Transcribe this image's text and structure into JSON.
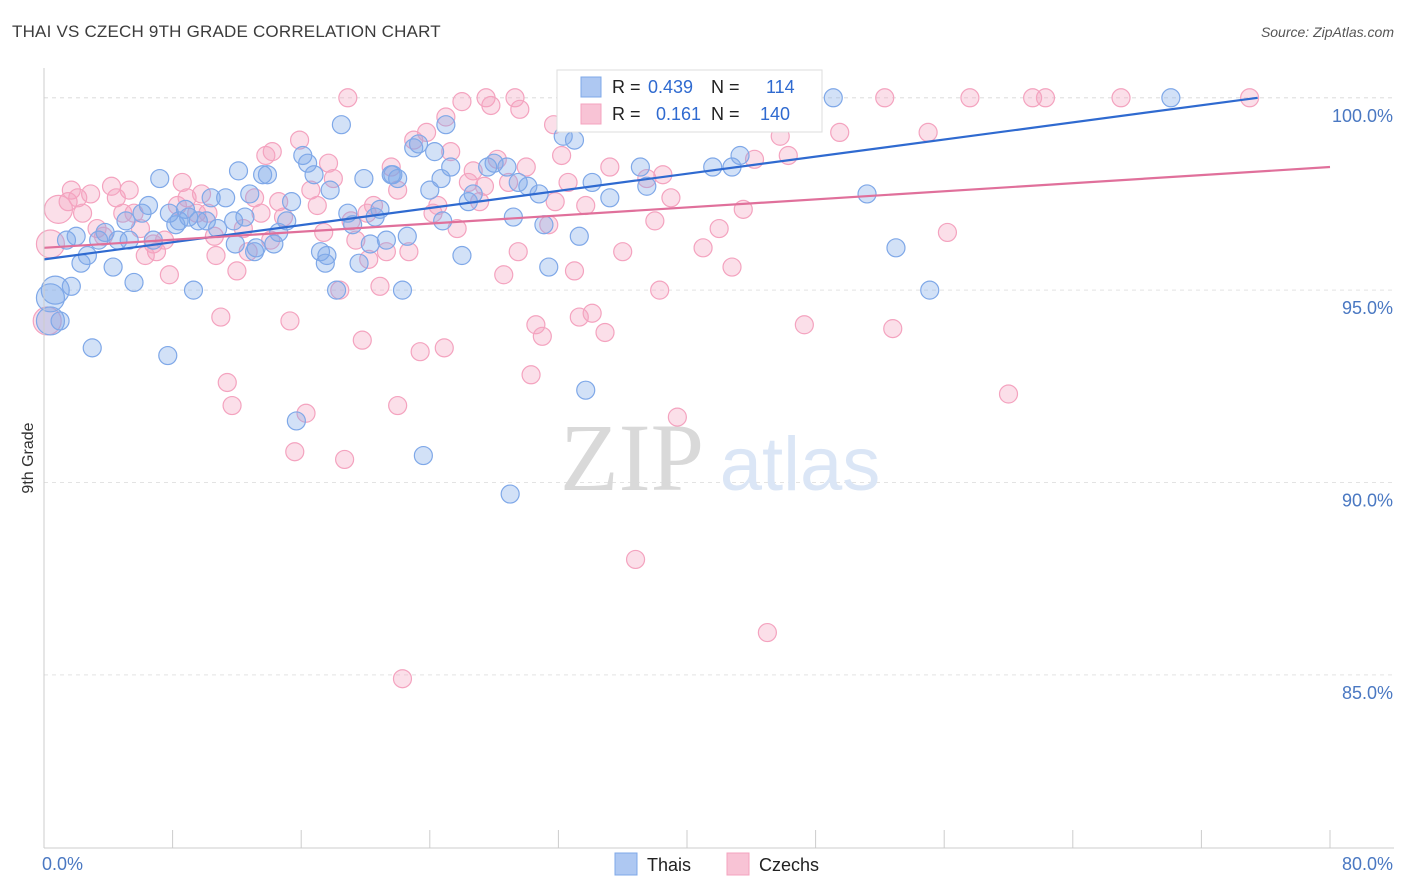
{
  "header": {
    "title": "THAI VS CZECH 9TH GRADE CORRELATION CHART",
    "source": "Source: ZipAtlas.com"
  },
  "watermark": {
    "zip": "ZIP",
    "atlas": "atlas"
  },
  "stats": [
    {
      "r_label": "R =",
      "r_value": "0.439",
      "n_label": "N =",
      "n_value": "114",
      "color": "#7fa8e8"
    },
    {
      "r_label": "R =",
      "r_value": "0.161",
      "n_label": "N =",
      "n_value": "140",
      "color": "#f4a3bf"
    }
  ],
  "chart_data": {
    "type": "scatter",
    "title": "THAI VS CZECH 9TH GRADE CORRELATION CHART",
    "xlabel": "",
    "ylabel": "9th Grade",
    "xlim": [
      0,
      80
    ],
    "ylim": [
      80.5,
      100.8
    ],
    "x_tick_labels": [
      "0.0%",
      "80.0%"
    ],
    "y_ticks": [
      85,
      90,
      95,
      100
    ],
    "y_tick_labels": [
      "85.0%",
      "90.0%",
      "95.0%",
      "100.0%"
    ],
    "grid": true,
    "legend_position": "bottom",
    "series": [
      {
        "name": "Thais",
        "color": "#7fa8e8",
        "line_color": "#2f6ad0",
        "trend": [
          [
            0,
            95.8
          ],
          [
            75.5,
            100
          ]
        ],
        "points": [
          [
            0.4,
            94.2
          ],
          [
            0.4,
            94.8
          ],
          [
            1.0,
            94.2
          ],
          [
            0.7,
            95.0
          ],
          [
            1.7,
            95.1
          ],
          [
            1.4,
            96.3
          ],
          [
            2.3,
            95.7
          ],
          [
            2.0,
            96.4
          ],
          [
            2.7,
            95.9
          ],
          [
            3.4,
            96.3
          ],
          [
            3.8,
            96.5
          ],
          [
            4.3,
            95.6
          ],
          [
            4.6,
            96.3
          ],
          [
            5.1,
            96.8
          ],
          [
            5.3,
            96.3
          ],
          [
            6.1,
            97.0
          ],
          [
            6.5,
            97.2
          ],
          [
            6.8,
            96.3
          ],
          [
            7.2,
            97.9
          ],
          [
            7.8,
            97.0
          ],
          [
            8.2,
            96.7
          ],
          [
            8.4,
            96.8
          ],
          [
            8.8,
            97.1
          ],
          [
            9.3,
            95.0
          ],
          [
            9.6,
            96.8
          ],
          [
            10.1,
            96.8
          ],
          [
            10.4,
            97.4
          ],
          [
            10.8,
            96.6
          ],
          [
            11.3,
            97.4
          ],
          [
            11.8,
            96.8
          ],
          [
            12.1,
            98.1
          ],
          [
            12.5,
            96.9
          ],
          [
            12.8,
            97.5
          ],
          [
            13.2,
            96.1
          ],
          [
            13.6,
            98.0
          ],
          [
            13.9,
            98.0
          ],
          [
            14.3,
            96.2
          ],
          [
            14.6,
            96.5
          ],
          [
            15.1,
            96.8
          ],
          [
            15.4,
            97.3
          ],
          [
            15.7,
            91.6
          ],
          [
            16.1,
            98.5
          ],
          [
            16.4,
            98.3
          ],
          [
            16.8,
            98.0
          ],
          [
            17.2,
            96.0
          ],
          [
            17.5,
            95.7
          ],
          [
            17.8,
            97.6
          ],
          [
            18.2,
            95.0
          ],
          [
            18.5,
            99.3
          ],
          [
            18.9,
            97.0
          ],
          [
            19.2,
            96.7
          ],
          [
            19.6,
            95.7
          ],
          [
            19.9,
            97.9
          ],
          [
            20.3,
            96.2
          ],
          [
            20.6,
            96.9
          ],
          [
            20.9,
            97.1
          ],
          [
            21.3,
            96.3
          ],
          [
            21.6,
            98.0
          ],
          [
            22.0,
            97.9
          ],
          [
            22.3,
            95.0
          ],
          [
            22.6,
            96.4
          ],
          [
            23.0,
            98.7
          ],
          [
            23.3,
            98.8
          ],
          [
            23.6,
            90.7
          ],
          [
            24.0,
            97.6
          ],
          [
            24.3,
            98.6
          ],
          [
            24.7,
            97.9
          ],
          [
            25.0,
            99.3
          ],
          [
            25.3,
            98.2
          ],
          [
            26.0,
            95.9
          ],
          [
            26.4,
            97.3
          ],
          [
            26.7,
            97.5
          ],
          [
            27.6,
            98.2
          ],
          [
            28.0,
            98.3
          ],
          [
            28.8,
            98.2
          ],
          [
            29.2,
            96.9
          ],
          [
            29.5,
            97.8
          ],
          [
            30.1,
            97.7
          ],
          [
            31.1,
            96.7
          ],
          [
            31.4,
            95.6
          ],
          [
            32.3,
            99.0
          ],
          [
            32.6,
            99.9
          ],
          [
            33.0,
            98.9
          ],
          [
            33.3,
            96.4
          ],
          [
            33.7,
            92.4
          ],
          [
            34.1,
            97.8
          ],
          [
            34.8,
            100.0
          ],
          [
            35.2,
            97.4
          ],
          [
            36.1,
            99.4
          ],
          [
            37.1,
            98.2
          ],
          [
            37.5,
            97.7
          ],
          [
            38.8,
            100.0
          ],
          [
            39.3,
            100.0
          ],
          [
            40.2,
            100.0
          ],
          [
            41.6,
            98.2
          ],
          [
            42.8,
            98.2
          ],
          [
            43.3,
            98.5
          ],
          [
            49.1,
            100.0
          ],
          [
            51.2,
            97.5
          ],
          [
            53.0,
            96.1
          ],
          [
            55.1,
            95.0
          ],
          [
            70.1,
            100.0
          ],
          [
            17.6,
            95.9
          ],
          [
            5.6,
            95.2
          ],
          [
            9.0,
            96.9
          ],
          [
            13.1,
            96.0
          ],
          [
            21.7,
            98.0
          ],
          [
            24.8,
            96.8
          ],
          [
            30.8,
            97.5
          ],
          [
            36.8,
            99.5
          ],
          [
            29.0,
            89.7
          ],
          [
            3.0,
            93.5
          ],
          [
            7.7,
            93.3
          ],
          [
            11.9,
            96.2
          ]
        ]
      },
      {
        "name": "Czechs",
        "color": "#f4a3bf",
        "line_color": "#e0709b",
        "trend": [
          [
            0,
            96.1
          ],
          [
            80,
            98.2
          ]
        ],
        "points": [
          [
            0.2,
            94.2
          ],
          [
            0.4,
            96.2
          ],
          [
            0.9,
            97.1
          ],
          [
            1.5,
            97.3
          ],
          [
            1.7,
            97.6
          ],
          [
            2.1,
            97.4
          ],
          [
            2.4,
            97.0
          ],
          [
            2.9,
            97.5
          ],
          [
            3.3,
            96.6
          ],
          [
            3.7,
            96.4
          ],
          [
            4.2,
            97.7
          ],
          [
            4.5,
            97.4
          ],
          [
            4.9,
            97.0
          ],
          [
            5.3,
            97.6
          ],
          [
            5.6,
            97.0
          ],
          [
            6.0,
            96.6
          ],
          [
            6.3,
            95.9
          ],
          [
            6.8,
            96.2
          ],
          [
            7.0,
            96.0
          ],
          [
            7.5,
            96.3
          ],
          [
            7.8,
            95.4
          ],
          [
            8.3,
            97.2
          ],
          [
            8.6,
            97.8
          ],
          [
            8.9,
            97.4
          ],
          [
            9.5,
            97.0
          ],
          [
            9.8,
            97.5
          ],
          [
            10.2,
            97.0
          ],
          [
            10.6,
            96.4
          ],
          [
            11.0,
            94.3
          ],
          [
            11.4,
            92.6
          ],
          [
            11.7,
            92.0
          ],
          [
            12.0,
            95.5
          ],
          [
            12.4,
            96.6
          ],
          [
            12.7,
            96.0
          ],
          [
            13.1,
            97.4
          ],
          [
            13.5,
            97.0
          ],
          [
            13.8,
            98.5
          ],
          [
            14.2,
            98.6
          ],
          [
            14.6,
            97.3
          ],
          [
            14.9,
            96.9
          ],
          [
            15.3,
            94.2
          ],
          [
            15.6,
            90.8
          ],
          [
            15.9,
            98.9
          ],
          [
            16.3,
            91.8
          ],
          [
            16.6,
            97.6
          ],
          [
            17.0,
            97.2
          ],
          [
            17.4,
            96.5
          ],
          [
            17.7,
            98.3
          ],
          [
            18.0,
            97.9
          ],
          [
            18.4,
            95.0
          ],
          [
            18.7,
            90.6
          ],
          [
            19.1,
            96.8
          ],
          [
            19.4,
            96.3
          ],
          [
            19.8,
            93.7
          ],
          [
            20.2,
            95.8
          ],
          [
            20.5,
            97.2
          ],
          [
            20.9,
            95.1
          ],
          [
            21.3,
            96.0
          ],
          [
            21.6,
            98.2
          ],
          [
            22.0,
            97.6
          ],
          [
            22.3,
            84.9
          ],
          [
            22.7,
            96.0
          ],
          [
            23.0,
            98.9
          ],
          [
            23.4,
            93.4
          ],
          [
            23.8,
            99.1
          ],
          [
            24.2,
            97.0
          ],
          [
            24.5,
            97.2
          ],
          [
            24.9,
            93.5
          ],
          [
            25.3,
            98.6
          ],
          [
            25.7,
            96.6
          ],
          [
            26.0,
            99.9
          ],
          [
            26.4,
            97.8
          ],
          [
            26.7,
            98.1
          ],
          [
            27.1,
            97.3
          ],
          [
            27.4,
            97.7
          ],
          [
            27.8,
            99.8
          ],
          [
            28.2,
            98.4
          ],
          [
            28.6,
            95.4
          ],
          [
            28.9,
            97.8
          ],
          [
            29.3,
            100.0
          ],
          [
            29.6,
            99.7
          ],
          [
            30.0,
            98.2
          ],
          [
            30.3,
            92.8
          ],
          [
            30.6,
            94.1
          ],
          [
            31.0,
            93.8
          ],
          [
            31.4,
            96.7
          ],
          [
            31.8,
            97.3
          ],
          [
            32.2,
            98.5
          ],
          [
            32.6,
            97.8
          ],
          [
            33.0,
            95.5
          ],
          [
            33.3,
            94.3
          ],
          [
            33.7,
            97.2
          ],
          [
            34.1,
            94.4
          ],
          [
            34.5,
            99.4
          ],
          [
            34.9,
            93.9
          ],
          [
            35.2,
            98.2
          ],
          [
            35.6,
            100.0
          ],
          [
            36.0,
            96.0
          ],
          [
            36.4,
            99.7
          ],
          [
            36.8,
            88.0
          ],
          [
            37.5,
            97.9
          ],
          [
            38.0,
            96.8
          ],
          [
            38.5,
            98.0
          ],
          [
            39.0,
            97.4
          ],
          [
            39.4,
            91.7
          ],
          [
            40.1,
            100.0
          ],
          [
            41.0,
            96.1
          ],
          [
            42.0,
            96.6
          ],
          [
            42.8,
            95.6
          ],
          [
            43.5,
            97.1
          ],
          [
            44.2,
            98.4
          ],
          [
            45.0,
            86.1
          ],
          [
            45.8,
            99.0
          ],
          [
            46.3,
            98.5
          ],
          [
            47.3,
            94.1
          ],
          [
            49.5,
            99.1
          ],
          [
            52.3,
            100.0
          ],
          [
            55.0,
            99.1
          ],
          [
            56.2,
            96.5
          ],
          [
            57.6,
            100.0
          ],
          [
            60.0,
            92.3
          ],
          [
            61.5,
            100.0
          ],
          [
            62.3,
            100.0
          ],
          [
            67.0,
            100.0
          ],
          [
            75.0,
            100.0
          ],
          [
            14.1,
            96.3
          ],
          [
            27.5,
            100.0
          ],
          [
            36.7,
            100.0
          ],
          [
            20.1,
            97.0
          ],
          [
            33.6,
            100.0
          ],
          [
            10.7,
            95.9
          ],
          [
            22.0,
            92.0
          ],
          [
            18.9,
            100.0
          ],
          [
            25.0,
            99.5
          ],
          [
            38.3,
            95.0
          ],
          [
            44.0,
            100.0
          ],
          [
            31.7,
            99.3
          ],
          [
            29.5,
            96.0
          ],
          [
            41.9,
            100.0
          ],
          [
            52.8,
            94.0
          ]
        ]
      }
    ]
  }
}
